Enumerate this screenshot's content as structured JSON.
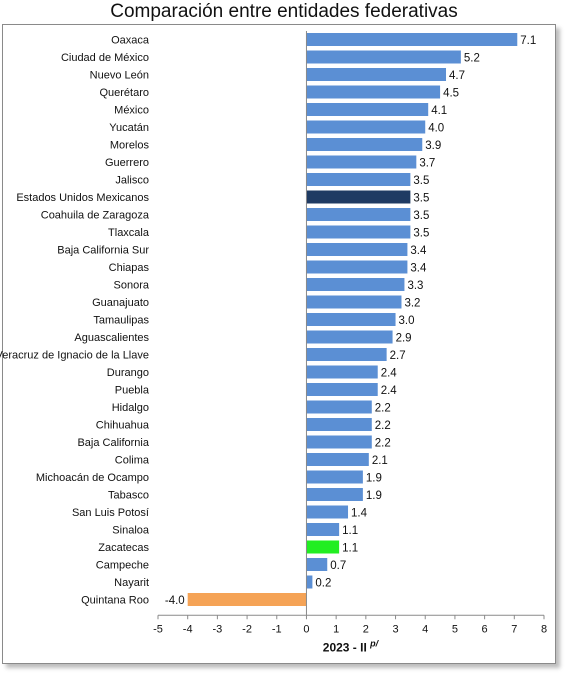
{
  "chart_data": {
    "type": "bar",
    "orientation": "horizontal",
    "title": "Comparación entre entidades federativas",
    "xlabel": "2023 - II",
    "xlabel_superscript": "p/",
    "xlim": [
      -5,
      8
    ],
    "xticks": [
      -5,
      -4,
      -3,
      -2,
      -1,
      0,
      1,
      2,
      3,
      4,
      5,
      6,
      7,
      8
    ],
    "grid": false,
    "colors": {
      "default": "#5b8fd4",
      "national": "#1f3b63",
      "highlight": "#22ee22",
      "negative": "#f5a356"
    },
    "categories": [
      "Oaxaca",
      "Ciudad de México",
      "Nuevo León",
      "Querétaro",
      "México",
      "Yucatán",
      "Morelos",
      "Guerrero",
      "Jalisco",
      "Estados Unidos Mexicanos",
      "Coahuila de Zaragoza",
      "Tlaxcala",
      "Baja California Sur",
      "Chiapas",
      "Sonora",
      "Guanajuato",
      "Tamaulipas",
      "Aguascalientes",
      "Veracruz de Ignacio de la Llave",
      "Durango",
      "Puebla",
      "Hidalgo",
      "Chihuahua",
      "Baja California",
      "Colima",
      "Michoacán de Ocampo",
      "Tabasco",
      "San Luis Potosí",
      "Sinaloa",
      "Zacatecas",
      "Campeche",
      "Nayarit",
      "Quintana Roo"
    ],
    "values": [
      7.1,
      5.2,
      4.7,
      4.5,
      4.1,
      4.0,
      3.9,
      3.7,
      3.5,
      3.5,
      3.5,
      3.5,
      3.4,
      3.4,
      3.3,
      3.2,
      3.0,
      2.9,
      2.7,
      2.4,
      2.4,
      2.2,
      2.2,
      2.2,
      2.1,
      1.9,
      1.9,
      1.4,
      1.1,
      1.1,
      0.7,
      0.2,
      -4.0
    ],
    "value_labels": [
      "7.1",
      "5.2",
      "4.7",
      "4.5",
      "4.1",
      "4.0",
      "3.9",
      "3.7",
      "3.5",
      "3.5",
      "3.5",
      "3.5",
      "3.4",
      "3.4",
      "3.3",
      "3.2",
      "3.0",
      "2.9",
      "2.7",
      "2.4",
      "2.4",
      "2.2",
      "2.2",
      "2.2",
      "2.1",
      "1.9",
      "1.9",
      "1.4",
      "1.1",
      "1.1",
      "0.7",
      "0.2",
      "-4.0"
    ],
    "bar_colors": [
      "default",
      "default",
      "default",
      "default",
      "default",
      "default",
      "default",
      "default",
      "default",
      "national",
      "default",
      "default",
      "default",
      "default",
      "default",
      "default",
      "default",
      "default",
      "default",
      "default",
      "default",
      "default",
      "default",
      "default",
      "default",
      "default",
      "default",
      "default",
      "default",
      "highlight",
      "default",
      "default",
      "negative"
    ]
  }
}
